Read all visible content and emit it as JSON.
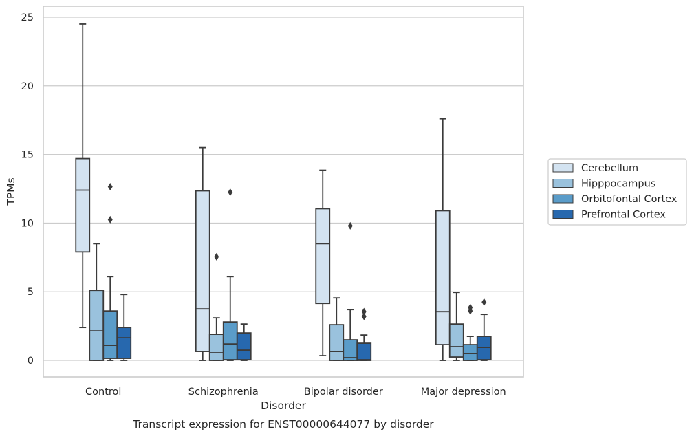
{
  "chart_data": {
    "type": "box",
    "title": "Transcript expression for ENST00000644077 by disorder",
    "xlabel": "Disorder",
    "ylabel": "TPMs",
    "ylim": [
      -1.2,
      25.8
    ],
    "yticks": [
      0,
      5,
      10,
      15,
      20,
      25
    ],
    "grid": true,
    "legend_position": "right",
    "categories": [
      "Control",
      "Schizophrenia",
      "Bipolar disorder",
      "Major depression"
    ],
    "series": [
      {
        "name": "Cerebellum",
        "color": "#d3e3f1",
        "boxes": [
          {
            "whisker_low": 2.4,
            "q1": 7.9,
            "median": 12.4,
            "q3": 14.7,
            "whisker_high": 24.5,
            "outliers": []
          },
          {
            "whisker_low": 0.0,
            "q1": 0.65,
            "median": 3.75,
            "q3": 12.35,
            "whisker_high": 15.5,
            "outliers": []
          },
          {
            "whisker_low": 0.35,
            "q1": 4.15,
            "median": 8.5,
            "q3": 11.05,
            "whisker_high": 13.85,
            "outliers": []
          },
          {
            "whisker_low": 0.0,
            "q1": 1.15,
            "median": 3.55,
            "q3": 10.9,
            "whisker_high": 17.6,
            "outliers": []
          }
        ]
      },
      {
        "name": "Hipppocampus",
        "color": "#9ac2dd",
        "boxes": [
          {
            "whisker_low": 0.0,
            "q1": 0.0,
            "median": 2.15,
            "q3": 5.1,
            "whisker_high": 8.5,
            "outliers": []
          },
          {
            "whisker_low": 0.0,
            "q1": 0.0,
            "median": 0.55,
            "q3": 1.9,
            "whisker_high": 3.1,
            "outliers": [
              7.55
            ]
          },
          {
            "whisker_low": 0.0,
            "q1": 0.0,
            "median": 0.65,
            "q3": 2.6,
            "whisker_high": 4.55,
            "outliers": []
          },
          {
            "whisker_low": 0.0,
            "q1": 0.25,
            "median": 1.0,
            "q3": 2.65,
            "whisker_high": 4.95,
            "outliers": []
          }
        ]
      },
      {
        "name": "Orbitofontal Cortex",
        "color": "#5a9cc9",
        "boxes": [
          {
            "whisker_low": 0.0,
            "q1": 0.15,
            "median": 1.1,
            "q3": 3.6,
            "whisker_high": 6.1,
            "outliers": [
              10.25,
              12.65
            ]
          },
          {
            "whisker_low": 0.0,
            "q1": 0.05,
            "median": 1.2,
            "q3": 2.8,
            "whisker_high": 6.1,
            "outliers": [
              12.25
            ]
          },
          {
            "whisker_low": 0.0,
            "q1": 0.0,
            "median": 0.2,
            "q3": 1.5,
            "whisker_high": 3.7,
            "outliers": [
              9.8
            ]
          },
          {
            "whisker_low": 0.0,
            "q1": 0.0,
            "median": 0.5,
            "q3": 1.15,
            "whisker_high": 1.75,
            "outliers": [
              3.6,
              3.85
            ]
          }
        ]
      },
      {
        "name": "Prefrontal Cortex",
        "color": "#2768ae",
        "boxes": [
          {
            "whisker_low": 0.0,
            "q1": 0.15,
            "median": 1.65,
            "q3": 2.4,
            "whisker_high": 4.8,
            "outliers": []
          },
          {
            "whisker_low": 0.0,
            "q1": 0.05,
            "median": 0.75,
            "q3": 2.0,
            "whisker_high": 2.65,
            "outliers": []
          },
          {
            "whisker_low": 0.0,
            "q1": 0.0,
            "median": 0.05,
            "q3": 1.25,
            "whisker_high": 1.85,
            "outliers": [
              3.2,
              3.55
            ]
          },
          {
            "whisker_low": 0.0,
            "q1": 0.05,
            "median": 0.95,
            "q3": 1.75,
            "whisker_high": 3.35,
            "outliers": [
              4.25
            ]
          }
        ]
      }
    ]
  }
}
